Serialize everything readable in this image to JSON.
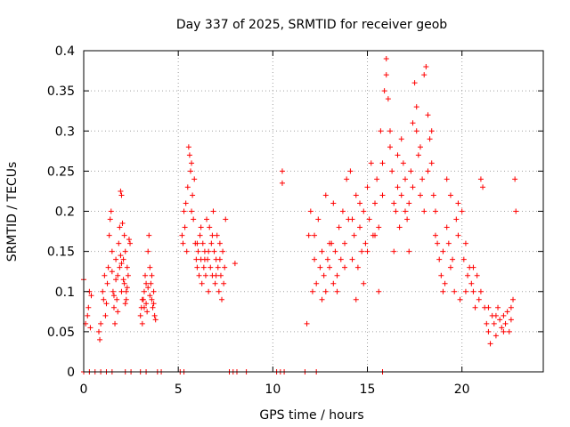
{
  "chart_data": {
    "type": "scatter",
    "title": "Day 337 of 2025, SRMTID for receiver geob",
    "xlabel": "GPS time / hours",
    "ylabel": "SRMTID / TECUs",
    "xlim": [
      0,
      24.3
    ],
    "ylim": [
      0,
      0.4
    ],
    "x_ticks": [
      0,
      5,
      10,
      15,
      20
    ],
    "x_tick_labels": [
      "0",
      "5",
      "10",
      "15",
      "20"
    ],
    "y_ticks": [
      0,
      0.05,
      0.1,
      0.15,
      0.2,
      0.25,
      0.3,
      0.35,
      0.4
    ],
    "y_tick_labels": [
      "0",
      "0.05",
      "0.1",
      "0.15",
      "0.2",
      "0.25",
      "0.3",
      "0.35",
      "0.4"
    ],
    "grid": true,
    "marker": "plus",
    "color": "#ff0000",
    "series": [
      {
        "name": "SRMTID",
        "points": [
          [
            0.0,
            0.115
          ],
          [
            0.1,
            0.06
          ],
          [
            0.2,
            0.07
          ],
          [
            0.25,
            0.08
          ],
          [
            0.3,
            0.1
          ],
          [
            0.35,
            0.055
          ],
          [
            0.4,
            0.095
          ],
          [
            0.8,
            0.05
          ],
          [
            0.85,
            0.04
          ],
          [
            0.9,
            0.06
          ],
          [
            1.0,
            0.1
          ],
          [
            1.05,
            0.09
          ],
          [
            1.1,
            0.12
          ],
          [
            1.15,
            0.07
          ],
          [
            1.2,
            0.085
          ],
          [
            1.25,
            0.11
          ],
          [
            1.3,
            0.13
          ],
          [
            1.35,
            0.17
          ],
          [
            1.4,
            0.19
          ],
          [
            1.45,
            0.2
          ],
          [
            1.5,
            0.15
          ],
          [
            1.55,
            0.1
          ],
          [
            1.6,
            0.08
          ],
          [
            1.65,
            0.06
          ],
          [
            1.7,
            0.14
          ],
          [
            1.75,
            0.09
          ],
          [
            1.8,
            0.12
          ],
          [
            1.85,
            0.16
          ],
          [
            1.9,
            0.13
          ],
          [
            1.95,
            0.225
          ],
          [
            2.0,
            0.22
          ],
          [
            2.05,
            0.185
          ],
          [
            2.1,
            0.14
          ],
          [
            2.15,
            0.11
          ],
          [
            2.2,
            0.15
          ],
          [
            2.25,
            0.1
          ],
          [
            2.3,
            0.13
          ],
          [
            2.35,
            0.12
          ],
          [
            2.4,
            0.165
          ],
          [
            1.9,
            0.18
          ],
          [
            2.0,
            0.1
          ],
          [
            1.8,
            0.075
          ],
          [
            1.6,
            0.095
          ],
          [
            2.1,
            0.115
          ],
          [
            2.2,
            0.085
          ],
          [
            2.3,
            0.105
          ],
          [
            2.45,
            0.16
          ],
          [
            1.5,
            0.125
          ],
          [
            1.7,
            0.115
          ],
          [
            2.0,
            0.135
          ],
          [
            2.25,
            0.09
          ],
          [
            1.95,
            0.145
          ],
          [
            2.15,
            0.17
          ],
          [
            3.0,
            0.07
          ],
          [
            3.05,
            0.08
          ],
          [
            3.1,
            0.06
          ],
          [
            3.15,
            0.09
          ],
          [
            3.2,
            0.1
          ],
          [
            3.25,
            0.12
          ],
          [
            3.3,
            0.085
          ],
          [
            3.35,
            0.075
          ],
          [
            3.4,
            0.15
          ],
          [
            3.45,
            0.17
          ],
          [
            3.5,
            0.13
          ],
          [
            3.55,
            0.11
          ],
          [
            3.6,
            0.09
          ],
          [
            3.65,
            0.08
          ],
          [
            3.7,
            0.1
          ],
          [
            3.75,
            0.07
          ],
          [
            3.8,
            0.065
          ],
          [
            3.5,
            0.095
          ],
          [
            3.3,
            0.11
          ],
          [
            3.2,
            0.08
          ],
          [
            3.6,
            0.12
          ],
          [
            3.4,
            0.105
          ],
          [
            3.1,
            0.09
          ],
          [
            3.7,
            0.085
          ],
          [
            5.2,
            0.17
          ],
          [
            5.25,
            0.16
          ],
          [
            5.3,
            0.2
          ],
          [
            5.35,
            0.18
          ],
          [
            5.4,
            0.21
          ],
          [
            5.45,
            0.15
          ],
          [
            5.5,
            0.23
          ],
          [
            5.55,
            0.28
          ],
          [
            5.6,
            0.27
          ],
          [
            5.65,
            0.25
          ],
          [
            5.7,
            0.26
          ],
          [
            5.75,
            0.22
          ],
          [
            5.8,
            0.19
          ],
          [
            5.85,
            0.24
          ],
          [
            5.9,
            0.16
          ],
          [
            5.95,
            0.14
          ],
          [
            6.0,
            0.13
          ],
          [
            6.05,
            0.15
          ],
          [
            6.1,
            0.12
          ],
          [
            6.15,
            0.17
          ],
          [
            6.2,
            0.14
          ],
          [
            6.25,
            0.11
          ],
          [
            6.3,
            0.16
          ],
          [
            6.35,
            0.13
          ],
          [
            6.4,
            0.15
          ],
          [
            6.45,
            0.12
          ],
          [
            6.5,
            0.19
          ],
          [
            6.55,
            0.14
          ],
          [
            6.6,
            0.1
          ],
          [
            6.65,
            0.18
          ],
          [
            6.7,
            0.13
          ],
          [
            6.75,
            0.16
          ],
          [
            6.8,
            0.12
          ],
          [
            6.85,
            0.2
          ],
          [
            6.9,
            0.15
          ],
          [
            6.95,
            0.11
          ],
          [
            7.0,
            0.14
          ],
          [
            7.05,
            0.17
          ],
          [
            7.1,
            0.13
          ],
          [
            7.15,
            0.1
          ],
          [
            7.2,
            0.16
          ],
          [
            7.25,
            0.12
          ],
          [
            7.3,
            0.09
          ],
          [
            7.35,
            0.15
          ],
          [
            7.4,
            0.11
          ],
          [
            7.45,
            0.13
          ],
          [
            7.5,
            0.19
          ],
          [
            8.0,
            0.135
          ],
          [
            6.0,
            0.16
          ],
          [
            6.2,
            0.18
          ],
          [
            6.4,
            0.14
          ],
          [
            6.6,
            0.15
          ],
          [
            6.8,
            0.17
          ],
          [
            7.0,
            0.12
          ],
          [
            7.2,
            0.14
          ],
          [
            5.7,
            0.2
          ],
          [
            10.5,
            0.25
          ],
          [
            10.5,
            0.235
          ],
          [
            11.8,
            0.06
          ],
          [
            11.9,
            0.17
          ],
          [
            12.0,
            0.2
          ],
          [
            12.1,
            0.1
          ],
          [
            12.2,
            0.14
          ],
          [
            12.3,
            0.11
          ],
          [
            12.4,
            0.19
          ],
          [
            12.5,
            0.13
          ],
          [
            12.6,
            0.15
          ],
          [
            12.7,
            0.12
          ],
          [
            12.8,
            0.1
          ],
          [
            12.9,
            0.14
          ],
          [
            13.0,
            0.13
          ],
          [
            13.1,
            0.16
          ],
          [
            13.2,
            0.11
          ],
          [
            13.3,
            0.15
          ],
          [
            13.4,
            0.12
          ],
          [
            13.5,
            0.18
          ],
          [
            13.6,
            0.14
          ],
          [
            13.7,
            0.2
          ],
          [
            13.8,
            0.16
          ],
          [
            13.9,
            0.24
          ],
          [
            14.0,
            0.19
          ],
          [
            14.1,
            0.25
          ],
          [
            14.2,
            0.14
          ],
          [
            14.3,
            0.17
          ],
          [
            14.4,
            0.22
          ],
          [
            14.5,
            0.13
          ],
          [
            14.6,
            0.18
          ],
          [
            14.7,
            0.15
          ],
          [
            14.8,
            0.2
          ],
          [
            14.9,
            0.16
          ],
          [
            15.0,
            0.23
          ],
          [
            15.1,
            0.19
          ],
          [
            15.2,
            0.26
          ],
          [
            15.3,
            0.17
          ],
          [
            15.4,
            0.21
          ],
          [
            15.5,
            0.24
          ],
          [
            15.6,
            0.18
          ],
          [
            15.7,
            0.3
          ],
          [
            15.8,
            0.22
          ],
          [
            15.9,
            0.35
          ],
          [
            16.0,
            0.39
          ],
          [
            16.1,
            0.34
          ],
          [
            16.2,
            0.28
          ],
          [
            16.3,
            0.25
          ],
          [
            16.4,
            0.21
          ],
          [
            16.5,
            0.2
          ],
          [
            16.6,
            0.23
          ],
          [
            16.7,
            0.18
          ],
          [
            16.8,
            0.22
          ],
          [
            16.9,
            0.26
          ],
          [
            17.0,
            0.24
          ],
          [
            17.1,
            0.19
          ],
          [
            17.2,
            0.21
          ],
          [
            17.3,
            0.25
          ],
          [
            17.4,
            0.31
          ],
          [
            17.5,
            0.36
          ],
          [
            17.6,
            0.3
          ],
          [
            17.7,
            0.27
          ],
          [
            17.8,
            0.22
          ],
          [
            17.9,
            0.24
          ],
          [
            18.0,
            0.37
          ],
          [
            18.1,
            0.38
          ],
          [
            18.2,
            0.32
          ],
          [
            18.3,
            0.29
          ],
          [
            18.4,
            0.26
          ],
          [
            18.5,
            0.22
          ],
          [
            18.6,
            0.2
          ],
          [
            18.7,
            0.16
          ],
          [
            18.8,
            0.14
          ],
          [
            18.9,
            0.12
          ],
          [
            19.0,
            0.15
          ],
          [
            19.1,
            0.11
          ],
          [
            19.2,
            0.18
          ],
          [
            19.3,
            0.16
          ],
          [
            19.4,
            0.22
          ],
          [
            19.5,
            0.14
          ],
          [
            19.6,
            0.1
          ],
          [
            19.7,
            0.19
          ],
          [
            19.8,
            0.17
          ],
          [
            19.9,
            0.09
          ],
          [
            20.0,
            0.2
          ],
          [
            20.1,
            0.14
          ],
          [
            20.2,
            0.16
          ],
          [
            20.3,
            0.12
          ],
          [
            20.4,
            0.13
          ],
          [
            20.5,
            0.11
          ],
          [
            20.6,
            0.1
          ],
          [
            20.7,
            0.08
          ],
          [
            20.8,
            0.12
          ],
          [
            20.9,
            0.09
          ],
          [
            21.0,
            0.24
          ],
          [
            21.1,
            0.23
          ],
          [
            21.2,
            0.08
          ],
          [
            21.3,
            0.06
          ],
          [
            21.4,
            0.05
          ],
          [
            21.5,
            0.035
          ],
          [
            21.6,
            0.07
          ],
          [
            21.7,
            0.06
          ],
          [
            21.8,
            0.045
          ],
          [
            21.9,
            0.08
          ],
          [
            22.0,
            0.065
          ],
          [
            22.1,
            0.055
          ],
          [
            22.2,
            0.07
          ],
          [
            22.3,
            0.06
          ],
          [
            22.4,
            0.075
          ],
          [
            22.5,
            0.05
          ],
          [
            22.6,
            0.065
          ],
          [
            22.7,
            0.09
          ],
          [
            22.8,
            0.24
          ],
          [
            22.85,
            0.2
          ],
          [
            12.2,
            0.17
          ],
          [
            12.6,
            0.09
          ],
          [
            13.0,
            0.16
          ],
          [
            13.4,
            0.1
          ],
          [
            13.8,
            0.13
          ],
          [
            14.2,
            0.19
          ],
          [
            14.6,
            0.21
          ],
          [
            15.0,
            0.15
          ],
          [
            15.4,
            0.17
          ],
          [
            15.8,
            0.26
          ],
          [
            16.2,
            0.3
          ],
          [
            16.6,
            0.27
          ],
          [
            17.0,
            0.2
          ],
          [
            17.4,
            0.23
          ],
          [
            17.8,
            0.28
          ],
          [
            18.2,
            0.25
          ],
          [
            18.6,
            0.17
          ],
          [
            19.0,
            0.1
          ],
          [
            19.4,
            0.13
          ],
          [
            19.8,
            0.21
          ],
          [
            20.2,
            0.1
          ],
          [
            20.6,
            0.13
          ],
          [
            21.0,
            0.1
          ],
          [
            21.4,
            0.08
          ],
          [
            21.8,
            0.07
          ],
          [
            22.2,
            0.05
          ],
          [
            22.6,
            0.08
          ],
          [
            16.4,
            0.15
          ],
          [
            17.2,
            0.15
          ],
          [
            18.0,
            0.2
          ],
          [
            15.6,
            0.1
          ],
          [
            14.8,
            0.11
          ],
          [
            16.8,
            0.29
          ],
          [
            17.6,
            0.33
          ],
          [
            16.0,
            0.37
          ],
          [
            18.4,
            0.3
          ],
          [
            13.2,
            0.21
          ],
          [
            12.8,
            0.22
          ],
          [
            14.4,
            0.09
          ],
          [
            19.2,
            0.24
          ],
          [
            0.0,
            0.0
          ],
          [
            0.3,
            0.0
          ],
          [
            0.6,
            0.0
          ],
          [
            0.9,
            0.0
          ],
          [
            1.2,
            0.0
          ],
          [
            1.5,
            0.0
          ],
          [
            2.2,
            0.0
          ],
          [
            2.5,
            0.0
          ],
          [
            3.0,
            0.0
          ],
          [
            3.3,
            0.0
          ],
          [
            3.9,
            0.0
          ],
          [
            4.1,
            0.0
          ],
          [
            5.1,
            0.0
          ],
          [
            5.3,
            0.0
          ],
          [
            7.7,
            0.0
          ],
          [
            7.9,
            0.0
          ],
          [
            8.1,
            0.0
          ],
          [
            8.6,
            0.0
          ],
          [
            10.2,
            0.0
          ],
          [
            10.4,
            0.0
          ],
          [
            10.6,
            0.0
          ],
          [
            11.7,
            0.0
          ],
          [
            12.3,
            0.0
          ],
          [
            15.8,
            0.0
          ]
        ]
      }
    ]
  }
}
